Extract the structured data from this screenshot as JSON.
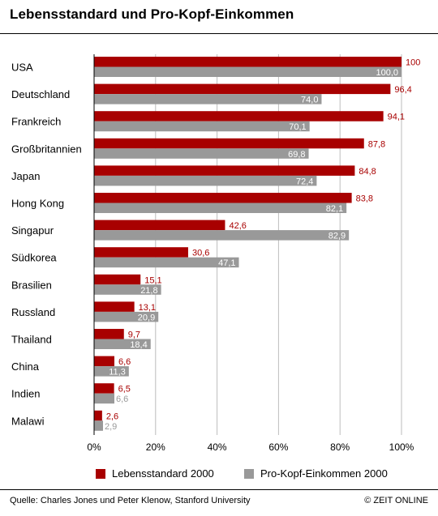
{
  "title": "Lebensstandard und Pro-Kopf-Einkommen",
  "chart_data": {
    "type": "bar",
    "orientation": "horizontal",
    "categories": [
      "USA",
      "Deutschland",
      "Frankreich",
      "Großbritannien",
      "Japan",
      "Hong Kong",
      "Singapur",
      "Südkorea",
      "Brasilien",
      "Russland",
      "Thailand",
      "China",
      "Indien",
      "Malawi"
    ],
    "series": [
      {
        "name": "Lebensstandard 2000",
        "color": "#a80000",
        "values": [
          100,
          96.4,
          94.1,
          87.8,
          84.8,
          83.8,
          42.6,
          30.6,
          15.1,
          13.1,
          9.7,
          6.6,
          6.5,
          2.6
        ],
        "labels": [
          "100",
          "96,4",
          "94,1",
          "87,8",
          "84,8",
          "83,8",
          "42,6",
          "30,6",
          "15,1",
          "13,1",
          "9,7",
          "6,6",
          "6,5",
          "2,6"
        ]
      },
      {
        "name": "Pro-Kopf-Einkommen 2000",
        "color": "#999999",
        "values": [
          100.0,
          74.0,
          70.1,
          69.8,
          72.4,
          82.1,
          82.9,
          47.1,
          21.8,
          20.9,
          18.4,
          11.3,
          6.6,
          2.9
        ],
        "labels": [
          "100,0",
          "74,0",
          "70,1",
          "69,8",
          "72,4",
          "82,1",
          "82,9",
          "47,1",
          "21,8",
          "20,9",
          "18,4",
          "11,3",
          "6,6",
          "2,9"
        ]
      }
    ],
    "xlim": [
      0,
      100
    ],
    "xticks": [
      "0%",
      "20%",
      "40%",
      "60%",
      "80%",
      "100%"
    ],
    "grid": true,
    "legend": "bottom"
  },
  "footer": {
    "source": "Quelle: Charles Jones und Peter Klenow, Stanford University",
    "credit": "© ZEIT ONLINE"
  }
}
